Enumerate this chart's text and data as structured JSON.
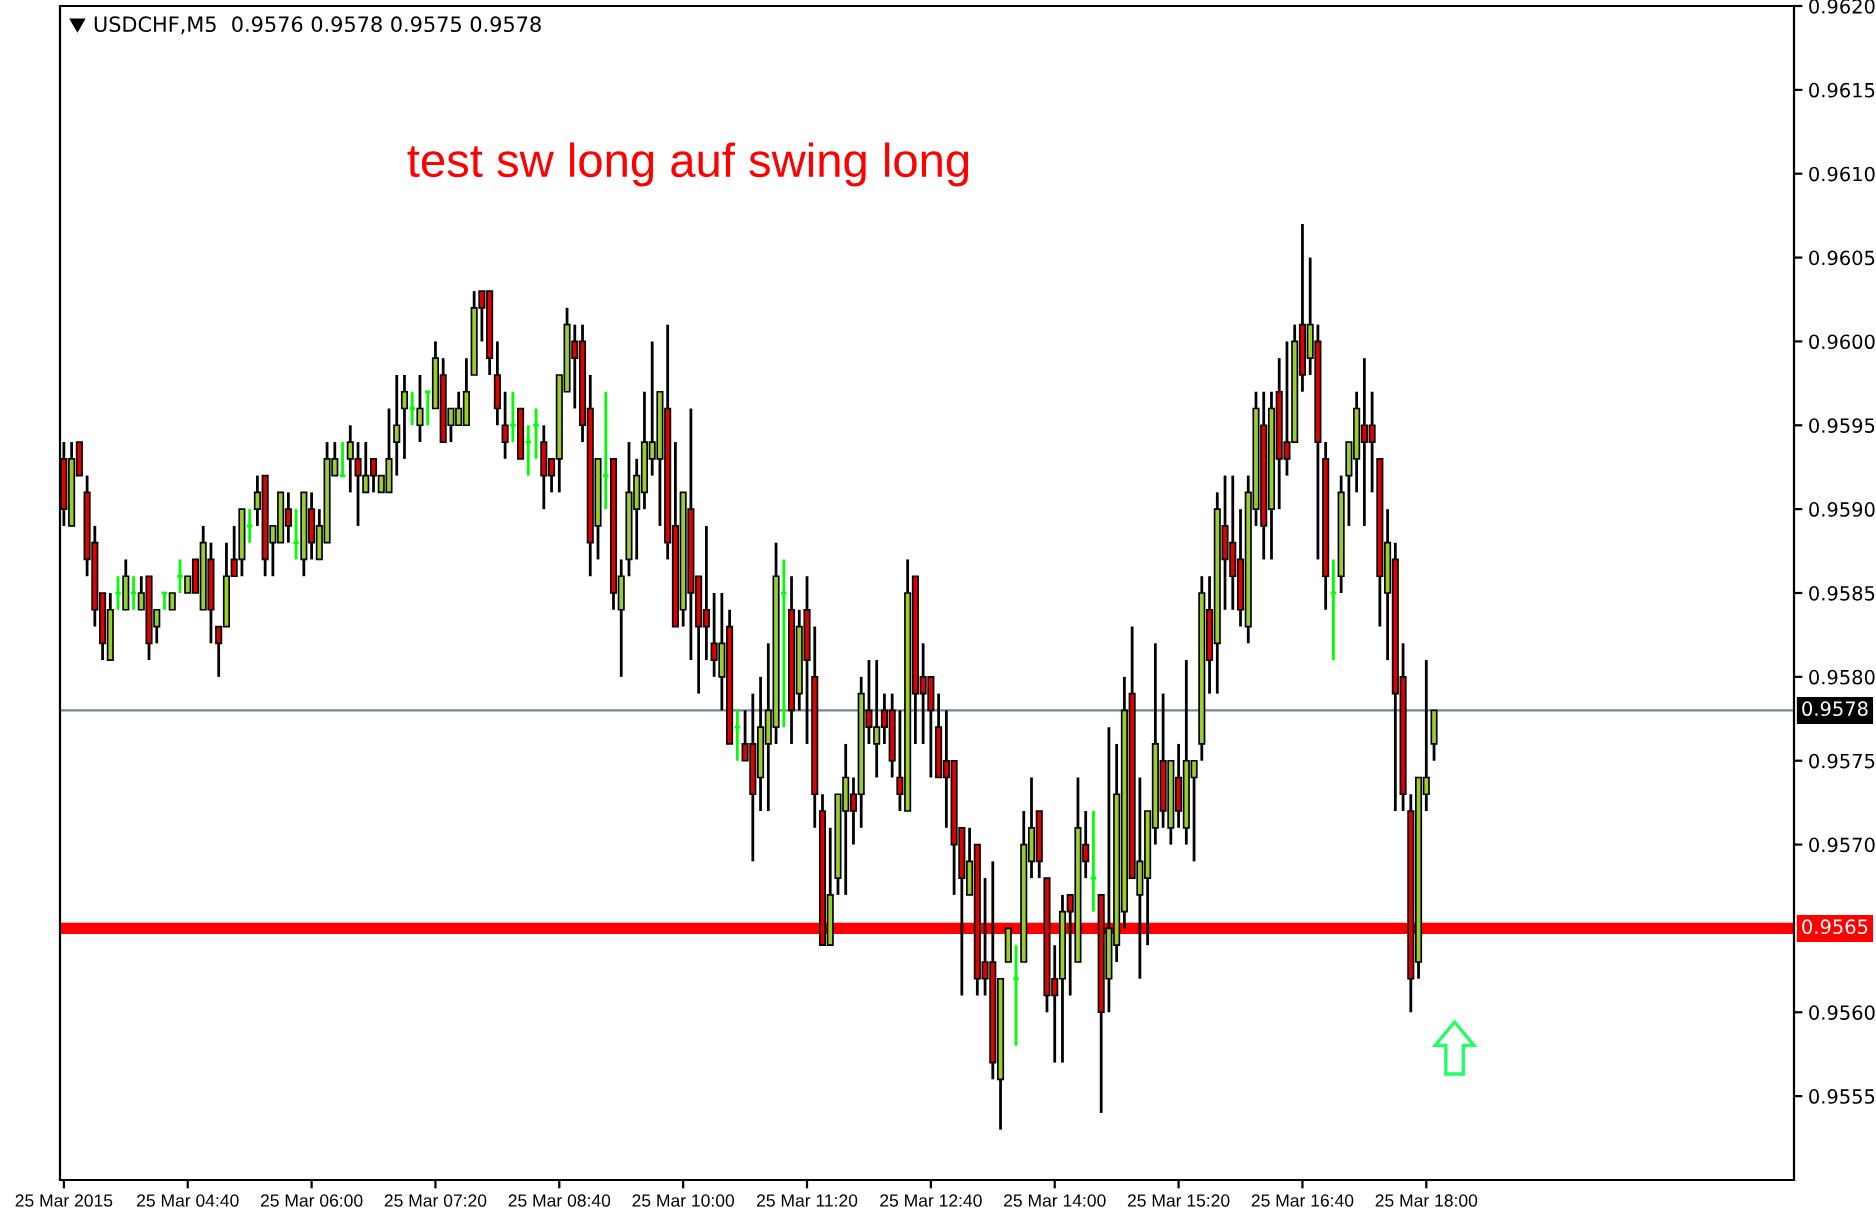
{
  "chart_data": {
    "type": "candlestick",
    "title": "USDCHF,M5  0.9576 0.9578 0.9575 0.9578",
    "annotations": [
      "test sw long auf swing long"
    ],
    "categories": [
      "25 Mar 2015",
      null,
      null,
      null,
      null,
      null,
      null,
      null,
      null,
      null,
      null,
      null,
      null,
      null,
      null,
      null,
      "25 Mar 04:40",
      null,
      null,
      null,
      null,
      null,
      null,
      null,
      null,
      null,
      null,
      null,
      null,
      null,
      null,
      null,
      "25 Mar 06:00",
      null,
      null,
      null,
      null,
      null,
      null,
      null,
      null,
      null,
      null,
      null,
      null,
      null,
      null,
      null,
      "25 Mar 07:20",
      null,
      null,
      null,
      null,
      null,
      null,
      null,
      null,
      null,
      null,
      null,
      null,
      null,
      null,
      null,
      "25 Mar 08:40",
      null,
      null,
      null,
      null,
      null,
      null,
      null,
      null,
      null,
      null,
      null,
      null,
      null,
      null,
      null,
      "25 Mar 10:00",
      null,
      null,
      null,
      null,
      null,
      null,
      null,
      null,
      null,
      null,
      null,
      null,
      null,
      null,
      null,
      "25 Mar 11:20",
      null,
      null,
      null,
      null,
      null,
      null,
      null,
      null,
      null,
      null,
      null,
      null,
      null,
      null,
      null,
      "25 Mar 12:40",
      null,
      null,
      null,
      null,
      null,
      null,
      null,
      null,
      null,
      null,
      null,
      null,
      null,
      null,
      null,
      "25 Mar 14:00",
      null,
      null,
      null,
      null,
      null,
      null,
      null,
      null,
      null,
      null,
      null,
      null,
      null,
      null,
      null,
      "25 Mar 15:20",
      null,
      null,
      null,
      null,
      null,
      null,
      null,
      null,
      null,
      null,
      null,
      null,
      null,
      null,
      null,
      "25 Mar 16:40",
      null,
      null,
      null,
      null,
      null,
      null,
      null,
      null,
      null,
      null,
      null,
      null,
      null,
      null,
      null,
      "25 Mar 18:00",
      null,
      null,
      null,
      null,
      null,
      null,
      null,
      null,
      null,
      null,
      null,
      null,
      null,
      null,
      null,
      null,
      null,
      null,
      null,
      null,
      null,
      null,
      null,
      null,
      null,
      null,
      null,
      null,
      null,
      null,
      null,
      null,
      null,
      null,
      null,
      null,
      null,
      null,
      null,
      null,
      null,
      null,
      null,
      null,
      null,
      null,
      null
    ],
    "ohlc": [
      [
        0.9593,
        0.9594,
        0.9589,
        0.959
      ],
      [
        0.9589,
        0.9594,
        0.9589,
        0.9593
      ],
      [
        0.9594,
        0.9594,
        0.9592,
        0.9592
      ],
      [
        0.9591,
        0.9592,
        0.9586,
        0.9587
      ],
      [
        0.9588,
        0.9589,
        0.9583,
        0.9584
      ],
      [
        0.9585,
        0.9585,
        0.9581,
        0.9582
      ],
      [
        0.9581,
        0.9585,
        0.9581,
        0.9584
      ],
      [
        0.9585,
        0.9586,
        0.9584,
        0.9585
      ],
      [
        0.9584,
        0.9587,
        0.9584,
        0.9586
      ],
      [
        0.9585,
        0.9586,
        0.9584,
        0.9585
      ],
      [
        0.9584,
        0.9586,
        0.9584,
        0.9585
      ],
      [
        0.9586,
        0.9586,
        0.9581,
        0.9582
      ],
      [
        0.9583,
        0.9584,
        0.9582,
        0.9584
      ],
      [
        0.9585,
        0.9585,
        0.9584,
        0.9585
      ],
      [
        0.9584,
        0.9585,
        0.9584,
        0.9585
      ],
      [
        0.9586,
        0.9587,
        0.9585,
        0.9586
      ],
      [
        0.9585,
        0.9586,
        0.9585,
        0.9586
      ],
      [
        0.9587,
        0.9587,
        0.9585,
        0.9585
      ],
      [
        0.9584,
        0.9589,
        0.9584,
        0.9588
      ],
      [
        0.9587,
        0.9588,
        0.9582,
        0.9584
      ],
      [
        0.9583,
        0.9583,
        0.958,
        0.9582
      ],
      [
        0.9583,
        0.9588,
        0.9583,
        0.9586
      ],
      [
        0.9587,
        0.9589,
        0.9586,
        0.9586
      ],
      [
        0.9587,
        0.959,
        0.9586,
        0.959
      ],
      [
        0.9589,
        0.959,
        0.9588,
        0.9589
      ],
      [
        0.959,
        0.9592,
        0.9589,
        0.9591
      ],
      [
        0.9592,
        0.9592,
        0.9586,
        0.9587
      ],
      [
        0.9588,
        0.9589,
        0.9586,
        0.9589
      ],
      [
        0.9588,
        0.9591,
        0.9588,
        0.9591
      ],
      [
        0.959,
        0.9591,
        0.9588,
        0.9589
      ],
      [
        0.9588,
        0.959,
        0.9587,
        0.9588
      ],
      [
        0.9587,
        0.9591,
        0.9586,
        0.9591
      ],
      [
        0.959,
        0.9591,
        0.9587,
        0.9588
      ],
      [
        0.9587,
        0.959,
        0.9587,
        0.9589
      ],
      [
        0.9588,
        0.9594,
        0.9588,
        0.9593
      ],
      [
        0.9592,
        0.9594,
        0.9592,
        0.9593
      ],
      [
        0.9592,
        0.9594,
        0.9592,
        0.9592
      ],
      [
        0.9593,
        0.9595,
        0.9591,
        0.9594
      ],
      [
        0.9593,
        0.9594,
        0.9589,
        0.9592
      ],
      [
        0.9591,
        0.9594,
        0.9591,
        0.9592
      ],
      [
        0.9593,
        0.9593,
        0.9591,
        0.9592
      ],
      [
        0.9591,
        0.9592,
        0.9591,
        0.9592
      ],
      [
        0.9591,
        0.9596,
        0.9591,
        0.9593
      ],
      [
        0.9594,
        0.9598,
        0.9592,
        0.9595
      ],
      [
        0.9596,
        0.9598,
        0.9593,
        0.9597
      ],
      [
        0.9596,
        0.9597,
        0.9595,
        0.9596
      ],
      [
        0.9595,
        0.9598,
        0.9594,
        0.9596
      ],
      [
        0.9597,
        0.9597,
        0.9595,
        0.9597
      ],
      [
        0.9596,
        0.96,
        0.9596,
        0.9599
      ],
      [
        0.9598,
        0.9599,
        0.9594,
        0.9594
      ],
      [
        0.9595,
        0.9596,
        0.9594,
        0.9596
      ],
      [
        0.9595,
        0.9597,
        0.9595,
        0.9596
      ],
      [
        0.9595,
        0.9599,
        0.9595,
        0.9597
      ],
      [
        0.9598,
        0.9603,
        0.9598,
        0.9602
      ],
      [
        0.9603,
        0.9603,
        0.96,
        0.9602
      ],
      [
        0.9603,
        0.9603,
        0.9598,
        0.9599
      ],
      [
        0.9598,
        0.96,
        0.9595,
        0.9596
      ],
      [
        0.9595,
        0.9597,
        0.9593,
        0.9594
      ],
      [
        0.9595,
        0.9597,
        0.9594,
        0.9595
      ],
      [
        0.9596,
        0.9596,
        0.9593,
        0.9593
      ],
      [
        0.9594,
        0.9595,
        0.9592,
        0.9594
      ],
      [
        0.9595,
        0.9596,
        0.9593,
        0.9595
      ],
      [
        0.9594,
        0.9595,
        0.959,
        0.9592
      ],
      [
        0.9593,
        0.9593,
        0.9591,
        0.9592
      ],
      [
        0.9593,
        0.9598,
        0.9591,
        0.9598
      ],
      [
        0.9597,
        0.9602,
        0.9597,
        0.9601
      ],
      [
        0.96,
        0.9601,
        0.9596,
        0.9599
      ],
      [
        0.96,
        0.9601,
        0.9594,
        0.9595
      ],
      [
        0.9596,
        0.9598,
        0.9586,
        0.9588
      ],
      [
        0.9589,
        0.9593,
        0.9587,
        0.9593
      ],
      [
        0.9592,
        0.9597,
        0.959,
        0.9592
      ],
      [
        0.9593,
        0.9593,
        0.9584,
        0.9585
      ],
      [
        0.9584,
        0.9587,
        0.958,
        0.9586
      ],
      [
        0.9587,
        0.9594,
        0.9586,
        0.9591
      ],
      [
        0.959,
        0.9593,
        0.9587,
        0.9592
      ],
      [
        0.9591,
        0.9597,
        0.959,
        0.9594
      ],
      [
        0.9593,
        0.96,
        0.9592,
        0.9594
      ],
      [
        0.9593,
        0.9597,
        0.9589,
        0.9597
      ],
      [
        0.9596,
        0.9601,
        0.9587,
        0.9588
      ],
      [
        0.9589,
        0.9594,
        0.9583,
        0.9583
      ],
      [
        0.9584,
        0.9591,
        0.9583,
        0.9591
      ],
      [
        0.959,
        0.9596,
        0.9581,
        0.9585
      ],
      [
        0.9586,
        0.9586,
        0.9579,
        0.9583
      ],
      [
        0.9584,
        0.9589,
        0.9581,
        0.9583
      ],
      [
        0.9582,
        0.9585,
        0.958,
        0.9581
      ],
      [
        0.958,
        0.9585,
        0.9578,
        0.9582
      ],
      [
        0.9583,
        0.9584,
        0.9576,
        0.9576
      ],
      [
        0.9577,
        0.9578,
        0.9575,
        0.9577
      ],
      [
        0.9576,
        0.9578,
        0.9575,
        0.9575
      ],
      [
        0.9576,
        0.9579,
        0.9569,
        0.9573
      ],
      [
        0.9574,
        0.958,
        0.9572,
        0.9577
      ],
      [
        0.9576,
        0.9582,
        0.9572,
        0.9578
      ],
      [
        0.9577,
        0.9588,
        0.9576,
        0.9586
      ],
      [
        0.9585,
        0.9587,
        0.9577,
        0.9585
      ],
      [
        0.9584,
        0.9586,
        0.9576,
        0.9578
      ],
      [
        0.9579,
        0.9584,
        0.9578,
        0.9583
      ],
      [
        0.9584,
        0.9586,
        0.9576,
        0.9581
      ],
      [
        0.958,
        0.9583,
        0.9571,
        0.9573
      ],
      [
        0.9572,
        0.9573,
        0.9564,
        0.9564
      ],
      [
        0.9564,
        0.9571,
        0.9564,
        0.9567
      ],
      [
        0.9568,
        0.9573,
        0.9567,
        0.9573
      ],
      [
        0.9572,
        0.9576,
        0.9567,
        0.9574
      ],
      [
        0.9573,
        0.9574,
        0.957,
        0.9572
      ],
      [
        0.9573,
        0.958,
        0.9571,
        0.9579
      ],
      [
        0.9578,
        0.9581,
        0.9576,
        0.9577
      ],
      [
        0.9576,
        0.9581,
        0.9574,
        0.9577
      ],
      [
        0.9578,
        0.9579,
        0.9576,
        0.9577
      ],
      [
        0.9578,
        0.9579,
        0.9574,
        0.9575
      ],
      [
        0.9574,
        0.9578,
        0.9572,
        0.9573
      ],
      [
        0.9572,
        0.9587,
        0.9572,
        0.9585
      ],
      [
        0.9586,
        0.9586,
        0.9576,
        0.9579
      ],
      [
        0.958,
        0.9582,
        0.9576,
        0.9579
      ],
      [
        0.958,
        0.958,
        0.9574,
        0.9578
      ],
      [
        0.9577,
        0.9579,
        0.9574,
        0.9574
      ],
      [
        0.9575,
        0.9578,
        0.9571,
        0.9574
      ],
      [
        0.9575,
        0.9575,
        0.9567,
        0.957
      ],
      [
        0.9571,
        0.9571,
        0.9561,
        0.9568
      ],
      [
        0.9567,
        0.9571,
        0.9567,
        0.9569
      ],
      [
        0.957,
        0.957,
        0.9561,
        0.9562
      ],
      [
        0.9563,
        0.9568,
        0.9561,
        0.9562
      ],
      [
        0.9563,
        0.9569,
        0.9556,
        0.9557
      ],
      [
        0.9556,
        0.9562,
        0.9553,
        0.9562
      ],
      [
        0.9563,
        0.9565,
        0.9563,
        0.9565
      ],
      [
        0.9562,
        0.9564,
        0.9558,
        0.9562
      ],
      [
        0.9563,
        0.9572,
        0.9563,
        0.957
      ],
      [
        0.9569,
        0.9574,
        0.9568,
        0.9571
      ],
      [
        0.9572,
        0.9572,
        0.9568,
        0.9569
      ],
      [
        0.9568,
        0.9568,
        0.956,
        0.9561
      ],
      [
        0.9562,
        0.9564,
        0.9557,
        0.9561
      ],
      [
        0.9562,
        0.9567,
        0.9557,
        0.9566
      ],
      [
        0.9567,
        0.9567,
        0.9561,
        0.9566
      ],
      [
        0.9563,
        0.9574,
        0.9563,
        0.9571
      ],
      [
        0.957,
        0.9572,
        0.9568,
        0.9569
      ],
      [
        0.9568,
        0.9572,
        0.9566,
        0.9568
      ],
      [
        0.9567,
        0.9567,
        0.9554,
        0.956
      ],
      [
        0.9562,
        0.9577,
        0.956,
        0.9565
      ],
      [
        0.9564,
        0.9576,
        0.9563,
        0.9573
      ],
      [
        0.9566,
        0.958,
        0.9565,
        0.9578
      ],
      [
        0.9579,
        0.9583,
        0.9568,
        0.9568
      ],
      [
        0.9567,
        0.9574,
        0.9562,
        0.9569
      ],
      [
        0.9568,
        0.9572,
        0.9564,
        0.9572
      ],
      [
        0.9571,
        0.9582,
        0.957,
        0.9576
      ],
      [
        0.9575,
        0.9579,
        0.9571,
        0.9572
      ],
      [
        0.9571,
        0.9575,
        0.957,
        0.9575
      ],
      [
        0.9574,
        0.9576,
        0.9571,
        0.9572
      ],
      [
        0.9571,
        0.9581,
        0.957,
        0.9575
      ],
      [
        0.9574,
        0.9575,
        0.9569,
        0.9575
      ],
      [
        0.9576,
        0.9586,
        0.9575,
        0.9585
      ],
      [
        0.9584,
        0.9586,
        0.9579,
        0.9581
      ],
      [
        0.9582,
        0.9591,
        0.9579,
        0.959
      ],
      [
        0.9589,
        0.9592,
        0.9584,
        0.9587
      ],
      [
        0.9588,
        0.9592,
        0.9584,
        0.9586
      ],
      [
        0.9587,
        0.959,
        0.9583,
        0.9584
      ],
      [
        0.9583,
        0.9592,
        0.9582,
        0.9591
      ],
      [
        0.959,
        0.9597,
        0.9589,
        0.9596
      ],
      [
        0.9595,
        0.9597,
        0.9587,
        0.9589
      ],
      [
        0.959,
        0.9597,
        0.9587,
        0.9596
      ],
      [
        0.9597,
        0.9599,
        0.959,
        0.9593
      ],
      [
        0.9594,
        0.96,
        0.9592,
        0.9593
      ],
      [
        0.9594,
        0.9601,
        0.9594,
        0.96
      ],
      [
        0.9601,
        0.9607,
        0.9597,
        0.9598
      ],
      [
        0.9599,
        0.9605,
        0.9598,
        0.9601
      ],
      [
        0.96,
        0.9601,
        0.9587,
        0.9594
      ],
      [
        0.9593,
        0.9594,
        0.9584,
        0.9586
      ],
      [
        0.9585,
        0.9587,
        0.9581,
        0.9585
      ],
      [
        0.9586,
        0.9592,
        0.9585,
        0.9591
      ],
      [
        0.9592,
        0.9594,
        0.9589,
        0.9594
      ],
      [
        0.9593,
        0.9597,
        0.9591,
        0.9596
      ],
      [
        0.9595,
        0.9599,
        0.9589,
        0.9594
      ],
      [
        0.9595,
        0.9597,
        0.9591,
        0.9594
      ],
      [
        0.9593,
        0.9593,
        0.9583,
        0.9586
      ],
      [
        0.9585,
        0.959,
        0.9581,
        0.9588
      ],
      [
        0.9587,
        0.9588,
        0.9572,
        0.9579
      ],
      [
        0.958,
        0.9582,
        0.9572,
        0.9573
      ],
      [
        0.9572,
        0.9573,
        0.956,
        0.9562
      ],
      [
        0.9563,
        0.9574,
        0.9562,
        0.9574
      ],
      [
        0.9573,
        0.9581,
        0.9572,
        0.9574
      ],
      [
        0.9576,
        0.9578,
        0.9575,
        0.9578
      ],
      null,
      null,
      null,
      null,
      null,
      null,
      null,
      null,
      null,
      null,
      null,
      null,
      null,
      null,
      null,
      null,
      null,
      null,
      null,
      null,
      null,
      null,
      null,
      null,
      null,
      null,
      null,
      null,
      null,
      null,
      null,
      null,
      null,
      null,
      null,
      null,
      null,
      null,
      null,
      null,
      null,
      null,
      null,
      null,
      null,
      null
    ],
    "ylim": [
      0.955,
      0.962
    ],
    "yticks": [
      0.9555,
      {
        "value": 0.956,
        "label": "0.9560"
      },
      {
        "value": 0.957,
        "label": "0.9570"
      },
      0.9575,
      {
        "value": 0.958,
        "label": "0.9580"
      },
      0.9585,
      {
        "value": 0.959,
        "label": "0.9590"
      },
      0.9595,
      {
        "value": 0.96,
        "label": "0.9600"
      },
      0.9605,
      {
        "value": 0.961,
        "label": "0.9610"
      },
      0.9615,
      {
        "value": 0.962,
        "label": "0.9620"
      }
    ],
    "ref_lines": [
      {
        "axis": "y",
        "value": 0.9578,
        "label": "0.9578",
        "color": "#778899"
      },
      {
        "axis": "y",
        "value": 0.9565,
        "label": "0.9565",
        "color": "#ff0000"
      }
    ]
  }
}
